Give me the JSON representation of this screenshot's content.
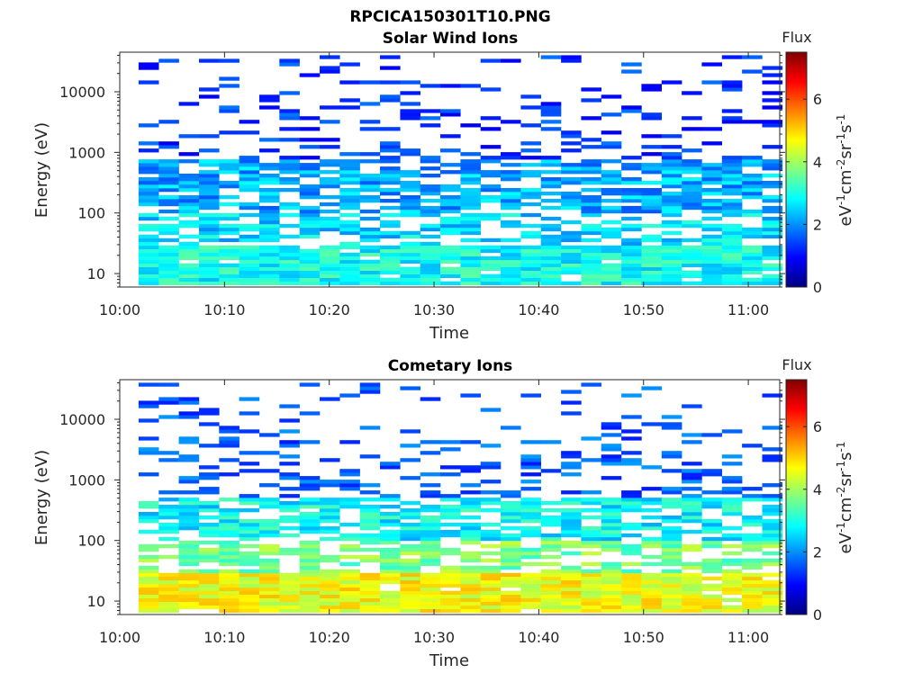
{
  "figure_title": "RPCICA150301T10.PNG",
  "colors": {
    "jet_stops": [
      "#000080",
      "#0000ff",
      "#0080ff",
      "#00ffff",
      "#80ff80",
      "#ffff00",
      "#ff8000",
      "#ff0000",
      "#800000"
    ]
  },
  "chart_data": [
    {
      "type": "heatmap",
      "title": "Solar Wind Ions",
      "xlabel": "Time",
      "ylabel": "Energy (eV)",
      "x_ticks": [
        "10:00",
        "10:10",
        "10:20",
        "10:30",
        "10:40",
        "10:50",
        "11:00"
      ],
      "x_range_minutes": [
        0,
        63
      ],
      "y_scale": "log",
      "y_ticks": [
        10,
        100,
        1000,
        10000
      ],
      "y_tick_labels": [
        "10",
        "100",
        "1000",
        "10000"
      ],
      "y_range": [
        6,
        45000
      ],
      "colorbar": {
        "title": "Flux",
        "label": "eV-1cm-2sr-1s-1",
        "range": [
          0,
          7.5
        ],
        "ticks": [
          0,
          2,
          4,
          6
        ]
      },
      "profile": {
        "lowband_level": 2.9,
        "midband_level": 2.2,
        "high_level": 1.3,
        "mid_top_ev": 800
      },
      "seed": 11
    },
    {
      "type": "heatmap",
      "title": "Cometary Ions",
      "xlabel": "Time",
      "ylabel": "Energy (eV)",
      "x_ticks": [
        "10:00",
        "10:10",
        "10:20",
        "10:30",
        "10:40",
        "10:50",
        "11:00"
      ],
      "x_range_minutes": [
        0,
        63
      ],
      "y_scale": "log",
      "y_ticks": [
        10,
        100,
        1000,
        10000
      ],
      "y_tick_labels": [
        "10",
        "100",
        "1000",
        "10000"
      ],
      "y_range": [
        6,
        45000
      ],
      "colorbar": {
        "title": "Flux",
        "label": "eV-1cm-2sr-1s-1",
        "range": [
          0,
          7.5
        ],
        "ticks": [
          0,
          2,
          4,
          6
        ]
      },
      "profile": {
        "lowband_level": 4.6,
        "midband_level": 2.8,
        "high_level": 1.6,
        "mid_top_ev": 500
      },
      "seed": 29
    }
  ]
}
